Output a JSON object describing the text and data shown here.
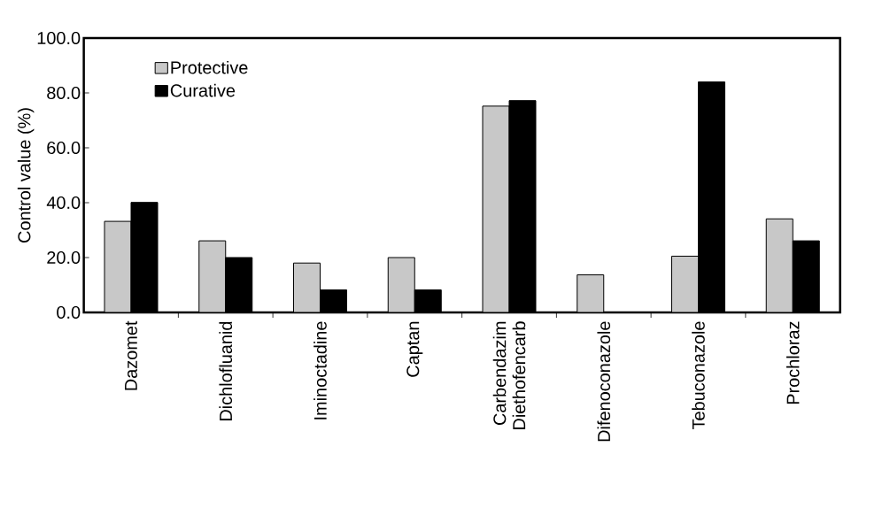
{
  "chart_data": {
    "type": "bar",
    "ylabel": "Control value (%)",
    "categories": [
      "Dazomet",
      "Dichlofluanid",
      "Iminoctadine",
      "Captan",
      "Carbendazim Diethofencarb",
      "Difenoconazole",
      "Tebuconazole",
      "Prochloraz"
    ],
    "series": [
      {
        "name": "Protective",
        "color": "#c8c8c8",
        "values": [
          33.2,
          26.1,
          18.0,
          20.0,
          75.2,
          13.7,
          20.5,
          34.1
        ]
      },
      {
        "name": "Curative",
        "color": "#000000",
        "values": [
          40.1,
          20.0,
          8.2,
          8.2,
          77.2,
          0,
          84.0,
          26.1
        ]
      }
    ],
    "ylim": [
      0,
      100
    ],
    "yticks": [
      {
        "value": 0,
        "label": "0.0"
      },
      {
        "value": 20,
        "label": "20.0"
      },
      {
        "value": 40,
        "label": "40.0"
      },
      {
        "value": 60,
        "label": "60.0"
      },
      {
        "value": 80,
        "label": "80.0"
      },
      {
        "value": 100,
        "label": "100.0"
      }
    ],
    "legend": "top left"
  }
}
